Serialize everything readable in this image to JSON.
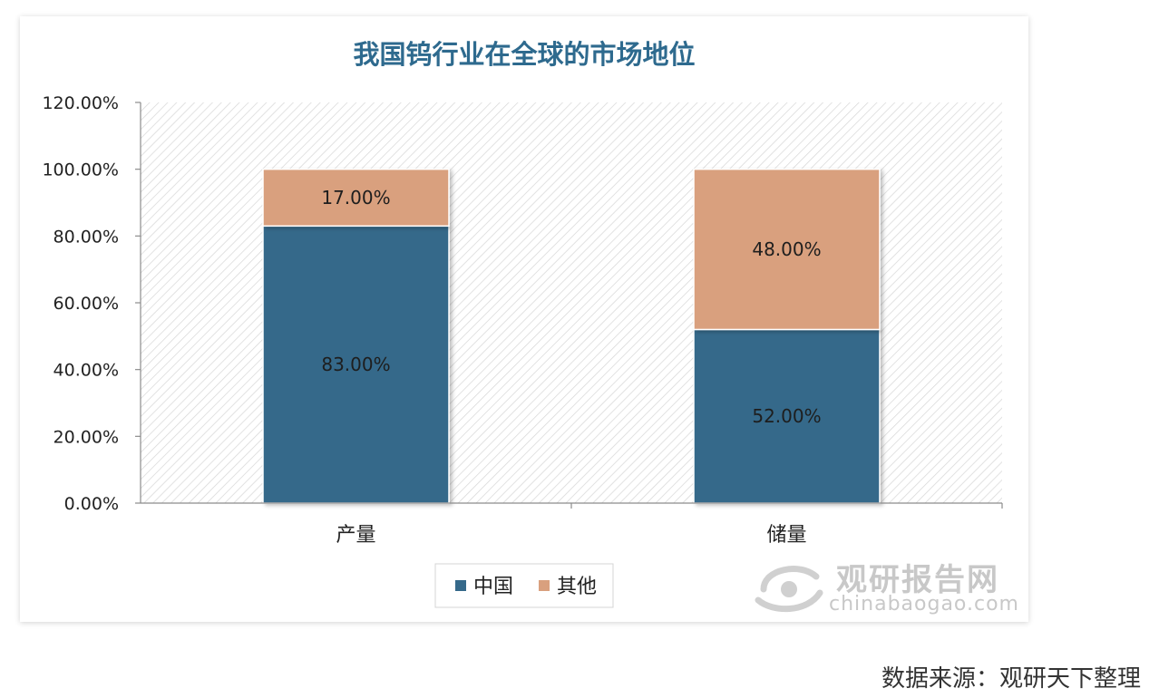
{
  "chart_data": {
    "type": "bar",
    "stacked": true,
    "title": "我国钨行业在全球的市场地位",
    "categories": [
      "产量",
      "储量"
    ],
    "series": [
      {
        "name": "中国",
        "values": [
          83,
          52
        ],
        "labels": [
          "83.00%",
          "52.00%"
        ],
        "color": "#35698a"
      },
      {
        "name": "其他",
        "values": [
          17,
          48
        ],
        "labels": [
          "17.00%",
          "48.00%"
        ],
        "color": "#d9a07e"
      }
    ],
    "ylim": [
      0,
      120
    ],
    "yticks": [
      0,
      20,
      40,
      60,
      80,
      100,
      120
    ],
    "ytick_labels": [
      "0.00%",
      "20.00%",
      "40.00%",
      "60.00%",
      "80.00%",
      "100.00%",
      "120.00%"
    ],
    "legend_position": "bottom",
    "title_color": "#2e6a8e"
  },
  "watermark": {
    "brand": "观研报告网",
    "url": "chinabaogao.com"
  },
  "source_note": "数据来源：观研天下整理"
}
